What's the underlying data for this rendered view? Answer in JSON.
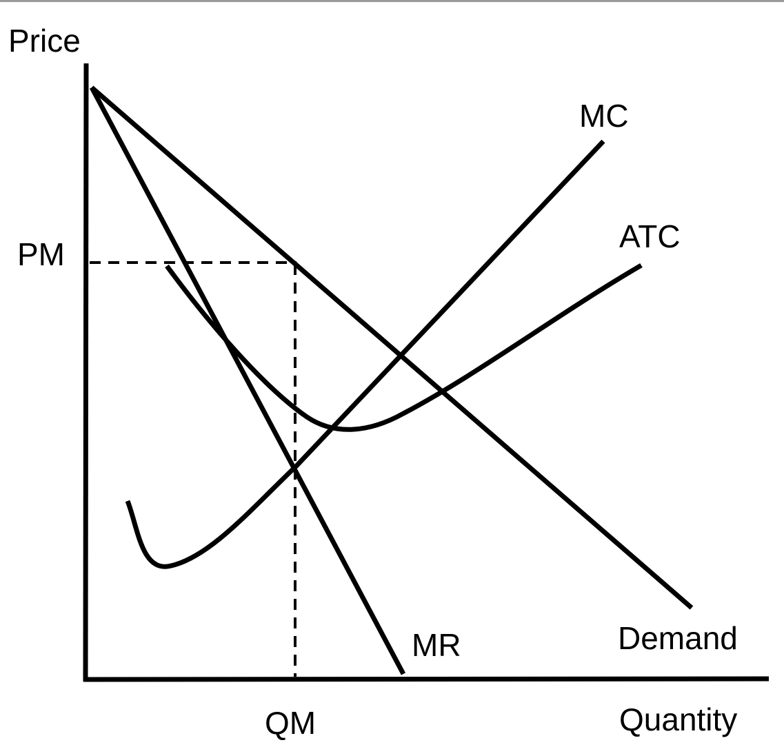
{
  "axes": {
    "y_label": "Price",
    "x_label": "Quantity",
    "price_label": "PM",
    "quantity_label": "QM"
  },
  "curves": {
    "mc": "MC",
    "atc": "ATC",
    "mr": "MR",
    "demand": "Demand"
  }
}
